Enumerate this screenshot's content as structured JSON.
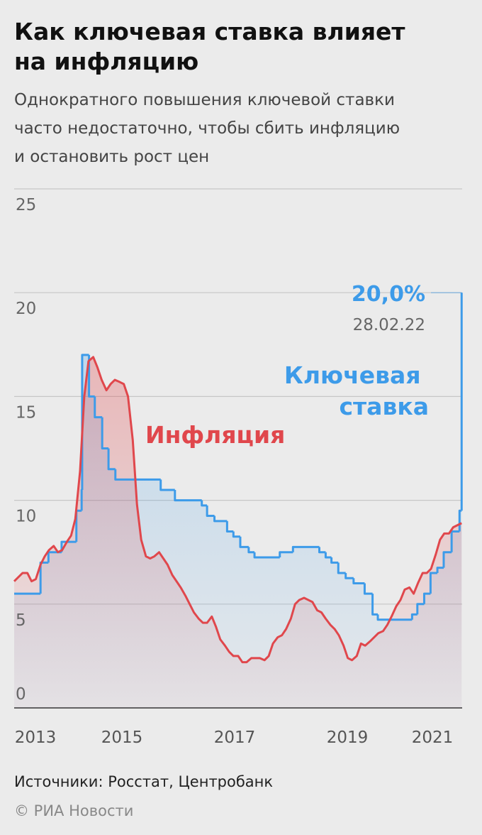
{
  "chart_data": {
    "type": "line",
    "title": [
      "Как ключевая ставка влияет",
      "на инфляцию"
    ],
    "subtitle": [
      "Однократного повышения ключевой ставки",
      "часто недостаточно, чтобы сбить инфляцию",
      "и остановить рост цен"
    ],
    "xlim": [
      2013.67,
      2022.17
    ],
    "ylim": [
      0,
      25
    ],
    "yticks": [
      0,
      5,
      10,
      15,
      20,
      25
    ],
    "grid": true,
    "x_axis_labels": [
      "2013",
      "2015",
      "2017",
      "2019",
      "2021"
    ],
    "series": [
      {
        "name": "Ключевая ставка",
        "color": "#3d9be9",
        "step": true,
        "x": [
          2013.67,
          2014.17,
          2014.32,
          2014.57,
          2014.85,
          2014.95,
          2014.96,
          2015.09,
          2015.2,
          2015.34,
          2015.46,
          2015.59,
          2016.45,
          2016.72,
          2017.23,
          2017.33,
          2017.47,
          2017.71,
          2017.83,
          2017.96,
          2018.12,
          2018.23,
          2018.71,
          2018.96,
          2019.46,
          2019.58,
          2019.69,
          2019.82,
          2019.96,
          2020.11,
          2020.32,
          2020.47,
          2020.57,
          2021.22,
          2021.32,
          2021.45,
          2021.57,
          2021.7,
          2021.82,
          2021.97,
          2022.12,
          2022.16
        ],
        "values": [
          5.5,
          7,
          7.5,
          8,
          9.5,
          10.5,
          17,
          15,
          14,
          12.5,
          11.5,
          11,
          10.5,
          10,
          9.75,
          9.25,
          9,
          8.5,
          8.25,
          7.75,
          7.5,
          7.25,
          7.5,
          7.75,
          7.5,
          7.25,
          7,
          6.5,
          6.25,
          6,
          5.5,
          4.5,
          4.25,
          4.5,
          5,
          5.5,
          6.5,
          6.75,
          7.5,
          8.5,
          9.5,
          20
        ]
      },
      {
        "name": "Инфляция",
        "color": "#e0474c",
        "step": false,
        "x": [
          2013.67,
          2013.75,
          2013.83,
          2013.92,
          2014.0,
          2014.08,
          2014.17,
          2014.25,
          2014.33,
          2014.42,
          2014.5,
          2014.58,
          2014.67,
          2014.75,
          2014.83,
          2014.92,
          2015.0,
          2015.08,
          2015.17,
          2015.25,
          2015.33,
          2015.42,
          2015.5,
          2015.58,
          2015.67,
          2015.75,
          2015.83,
          2015.92,
          2016.0,
          2016.08,
          2016.17,
          2016.25,
          2016.33,
          2016.42,
          2016.5,
          2016.58,
          2016.67,
          2016.75,
          2016.83,
          2016.92,
          2017.0,
          2017.08,
          2017.17,
          2017.25,
          2017.33,
          2017.42,
          2017.5,
          2017.58,
          2017.67,
          2017.75,
          2017.83,
          2017.92,
          2018.0,
          2018.08,
          2018.17,
          2018.25,
          2018.33,
          2018.42,
          2018.5,
          2018.58,
          2018.67,
          2018.75,
          2018.83,
          2018.92,
          2019.0,
          2019.08,
          2019.17,
          2019.25,
          2019.33,
          2019.42,
          2019.5,
          2019.58,
          2019.67,
          2019.75,
          2019.83,
          2019.92,
          2020.0,
          2020.08,
          2020.17,
          2020.25,
          2020.33,
          2020.42,
          2020.5,
          2020.58,
          2020.67,
          2020.75,
          2020.83,
          2020.92,
          2021.0,
          2021.08,
          2021.17,
          2021.25,
          2021.33,
          2021.42,
          2021.5,
          2021.58,
          2021.67,
          2021.75,
          2021.83,
          2021.92,
          2022.0,
          2022.16
        ],
        "values": [
          6.1,
          6.3,
          6.5,
          6.5,
          6.1,
          6.2,
          6.9,
          7.3,
          7.6,
          7.8,
          7.5,
          7.6,
          8.0,
          8.3,
          9.1,
          11.4,
          15.0,
          16.7,
          16.9,
          16.4,
          15.8,
          15.3,
          15.6,
          15.8,
          15.7,
          15.6,
          15.0,
          12.9,
          9.8,
          8.1,
          7.3,
          7.2,
          7.3,
          7.5,
          7.2,
          6.9,
          6.4,
          6.1,
          5.8,
          5.4,
          5.0,
          4.6,
          4.3,
          4.1,
          4.1,
          4.4,
          3.9,
          3.3,
          3.0,
          2.7,
          2.5,
          2.5,
          2.2,
          2.2,
          2.4,
          2.4,
          2.4,
          2.3,
          2.5,
          3.1,
          3.4,
          3.5,
          3.8,
          4.3,
          5.0,
          5.2,
          5.3,
          5.2,
          5.1,
          4.7,
          4.6,
          4.3,
          4.0,
          3.8,
          3.5,
          3.0,
          2.4,
          2.3,
          2.5,
          3.1,
          3.0,
          3.2,
          3.4,
          3.6,
          3.7,
          4.0,
          4.4,
          4.9,
          5.2,
          5.7,
          5.8,
          5.5,
          6.0,
          6.5,
          6.5,
          6.7,
          7.4,
          8.1,
          8.4,
          8.4,
          8.7,
          8.9
        ]
      }
    ],
    "end_label": "20,0%",
    "end_date": "28.02.22",
    "source": "Источники: Росстат, Центробанк",
    "credit": "© РИА Новости"
  }
}
